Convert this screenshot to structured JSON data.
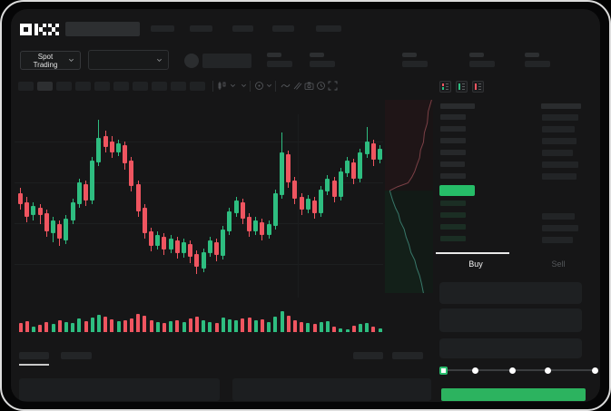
{
  "brand": {
    "name": "OKX"
  },
  "market_selector": {
    "label": "Spot Trading"
  },
  "trade_panel": {
    "buy_tab": "Buy",
    "sell_tab": "Sell",
    "slider": {
      "positions": [
        0,
        25,
        50,
        75,
        100
      ],
      "value": 0
    }
  },
  "colors": {
    "candle_up": "#2ebd80",
    "candle_down": "#ef5560",
    "buy_button": "#2cb35f",
    "book_highlight": "#26bd68",
    "slider_accent": "#2abd6e",
    "depth_ask_line": "#7c4046",
    "depth_ask_fill": "#1f1517",
    "depth_bid_line": "#38786a",
    "depth_bid_fill": "#132019"
  },
  "icons": [
    "okx-logo",
    "market-dropdown-chevron",
    "pair-dropdown-chevron",
    "candle-style-icon",
    "indicator-icon",
    "line-tool-icon",
    "draw-tool-icon",
    "camera-icon",
    "clock-icon",
    "fullscreen-icon",
    "book-combined-icon",
    "book-bids-icon",
    "book-asks-icon"
  ],
  "chart_data": {
    "type": "candlestick",
    "title": "",
    "xlabel": "",
    "ylabel": "",
    "x_axis_labels": [],
    "y_axis_labels": [],
    "note": "no axis tick labels are rendered in the screenshot; values are normalized 0-100 estimated from pixel positions",
    "candles_format": [
      "open",
      "close",
      "high",
      "low"
    ],
    "candles": [
      [
        57,
        51,
        60,
        48
      ],
      [
        52,
        44,
        55,
        41
      ],
      [
        45,
        50,
        52,
        42
      ],
      [
        49,
        45,
        51,
        40
      ],
      [
        46,
        36,
        48,
        33
      ],
      [
        35,
        42,
        44,
        30
      ],
      [
        40,
        32,
        42,
        28
      ],
      [
        31,
        43,
        45,
        29
      ],
      [
        42,
        52,
        54,
        40
      ],
      [
        51,
        63,
        65,
        49
      ],
      [
        62,
        53,
        64,
        50
      ],
      [
        53,
        75,
        77,
        51
      ],
      [
        74,
        87,
        97,
        72
      ],
      [
        88,
        82,
        91,
        79
      ],
      [
        85,
        79,
        88,
        76
      ],
      [
        79,
        84,
        86,
        77
      ],
      [
        83,
        73,
        85,
        70
      ],
      [
        75,
        61,
        77,
        58
      ],
      [
        62,
        47,
        64,
        44
      ],
      [
        49,
        35,
        51,
        32
      ],
      [
        36,
        28,
        38,
        25
      ],
      [
        28,
        34,
        36,
        26
      ],
      [
        33,
        26,
        35,
        23
      ],
      [
        26,
        32,
        34,
        24
      ],
      [
        31,
        24,
        33,
        21
      ],
      [
        24,
        30,
        32,
        22
      ],
      [
        29,
        22,
        31,
        19
      ],
      [
        24,
        17,
        26,
        13
      ],
      [
        16,
        25,
        27,
        14
      ],
      [
        24,
        31,
        33,
        22
      ],
      [
        30,
        23,
        32,
        20
      ],
      [
        23,
        37,
        39,
        21
      ],
      [
        36,
        47,
        49,
        34
      ],
      [
        46,
        53,
        55,
        44
      ],
      [
        52,
        43,
        54,
        40
      ],
      [
        44,
        36,
        46,
        33
      ],
      [
        36,
        42,
        44,
        34
      ],
      [
        41,
        34,
        43,
        31
      ],
      [
        34,
        40,
        42,
        32
      ],
      [
        39,
        57,
        59,
        37
      ],
      [
        56,
        79,
        90,
        54
      ],
      [
        78,
        63,
        80,
        60
      ],
      [
        64,
        54,
        66,
        51
      ],
      [
        55,
        48,
        57,
        45
      ],
      [
        48,
        54,
        56,
        46
      ],
      [
        53,
        46,
        55,
        43
      ],
      [
        46,
        59,
        61,
        44
      ],
      [
        58,
        65,
        67,
        56
      ],
      [
        64,
        55,
        66,
        52
      ],
      [
        55,
        69,
        71,
        53
      ],
      [
        68,
        75,
        77,
        66
      ],
      [
        74,
        65,
        76,
        62
      ],
      [
        65,
        79,
        81,
        63
      ],
      [
        78,
        85,
        93,
        76
      ],
      [
        84,
        75,
        86,
        72
      ],
      [
        75,
        81,
        83,
        73
      ]
    ],
    "volumes": [
      38,
      46,
      24,
      30,
      42,
      36,
      50,
      44,
      40,
      56,
      46,
      62,
      72,
      66,
      54,
      46,
      50,
      56,
      78,
      70,
      52,
      44,
      40,
      46,
      50,
      44,
      56,
      64,
      50,
      44,
      40,
      60,
      54,
      50,
      56,
      60,
      50,
      54,
      44,
      66,
      88,
      70,
      50,
      44,
      40,
      36,
      44,
      48,
      22,
      16,
      12,
      28,
      34,
      38,
      24,
      16
    ],
    "depth": {
      "orientation": "vertical",
      "ask_curve": [
        [
          97,
          0
        ],
        [
          90,
          6
        ],
        [
          88,
          12
        ],
        [
          82,
          17
        ],
        [
          80,
          22
        ],
        [
          74,
          26
        ],
        [
          72,
          30
        ],
        [
          66,
          34
        ],
        [
          62,
          37
        ],
        [
          56,
          40
        ],
        [
          48,
          43
        ],
        [
          26,
          45
        ],
        [
          10,
          47
        ]
      ],
      "bid_curve": [
        [
          10,
          47
        ],
        [
          16,
          52
        ],
        [
          22,
          56
        ],
        [
          28,
          59
        ],
        [
          32,
          63
        ],
        [
          40,
          67
        ],
        [
          44,
          71
        ],
        [
          50,
          75
        ],
        [
          54,
          79
        ],
        [
          62,
          83
        ],
        [
          66,
          87
        ],
        [
          72,
          91
        ],
        [
          76,
          95
        ],
        [
          80,
          100
        ]
      ]
    },
    "order_book": {
      "ask_rows": 6,
      "bid_rows": 4,
      "highlight_row": "last-price (green)"
    }
  }
}
